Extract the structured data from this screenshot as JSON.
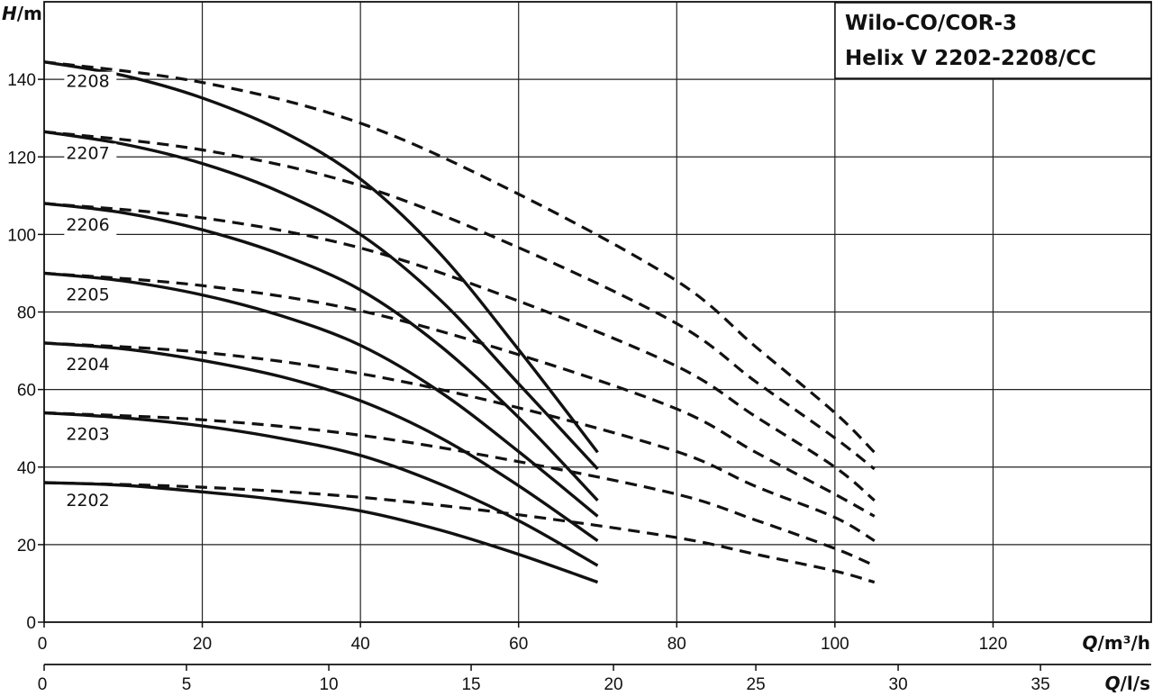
{
  "chart_data": {
    "type": "line",
    "title": [
      "Wilo-CO/COR-3",
      "Helix V 2202-2208/CC"
    ],
    "ylabel": "H/m",
    "ylabel_italic": "H",
    "ylabel_unit": "/m",
    "xlabel": "Q/m³/h",
    "xlabel_italic": "Q",
    "xlabel_unit": "/m³/h",
    "x2label": "Q/l/s",
    "x2label_italic": "Q",
    "x2label_unit": "/l/s",
    "xlim": [
      0,
      140
    ],
    "ylim": [
      0,
      160
    ],
    "xticks": [
      0,
      20,
      40,
      60,
      80,
      100,
      120
    ],
    "yticks": [
      0,
      20,
      40,
      60,
      80,
      100,
      120,
      140
    ],
    "x2ticks": [
      0,
      5,
      10,
      15,
      20,
      25,
      30,
      35
    ],
    "series": [
      {
        "name": "2202",
        "label_at": [
          3,
          30
        ],
        "solid": {
          "x": [
            0,
            10,
            20,
            30,
            40,
            50,
            60,
            70
          ],
          "y": [
            36,
            35.3,
            33.6,
            31.5,
            28.7,
            23.8,
            17.5,
            10.3
          ]
        },
        "dashed": {
          "x": [
            0,
            20,
            40,
            60,
            80,
            90,
            100,
            105
          ],
          "y": [
            36,
            34.8,
            32.2,
            27.7,
            21.8,
            17.5,
            13.2,
            10.3
          ]
        }
      },
      {
        "name": "2203",
        "label_at": [
          3,
          47
        ],
        "solid": {
          "x": [
            0,
            10,
            20,
            30,
            40,
            50,
            60,
            70
          ],
          "y": [
            54,
            52.7,
            50.6,
            47.4,
            43,
            35.7,
            26.2,
            14.6
          ]
        },
        "dashed": {
          "x": [
            0,
            20,
            40,
            60,
            80,
            90,
            100,
            105
          ],
          "y": [
            54,
            52.2,
            48.2,
            41.4,
            33,
            26.3,
            19,
            14.6
          ]
        }
      },
      {
        "name": "2204",
        "label_at": [
          3,
          65
        ],
        "solid": {
          "x": [
            0,
            10,
            20,
            30,
            40,
            50,
            60,
            70
          ],
          "y": [
            72,
            70.5,
            67.5,
            63.3,
            57.1,
            47.7,
            35.2,
            21
          ]
        },
        "dashed": {
          "x": [
            0,
            20,
            40,
            60,
            80,
            90,
            100,
            105
          ],
          "y": [
            72,
            69.6,
            64.1,
            55.3,
            44,
            35,
            27,
            21
          ]
        }
      },
      {
        "name": "2205",
        "label_at": [
          3,
          83
        ],
        "solid": {
          "x": [
            0,
            10,
            20,
            30,
            40,
            50,
            60,
            70
          ],
          "y": [
            90,
            88,
            84.4,
            79,
            71.4,
            59.5,
            44,
            27.3
          ]
        },
        "dashed": {
          "x": [
            0,
            20,
            40,
            60,
            80,
            90,
            100,
            105
          ],
          "y": [
            90,
            86.8,
            80.3,
            69,
            55,
            43.8,
            33,
            27.3
          ]
        }
      },
      {
        "name": "2206",
        "label_at": [
          3,
          101
        ],
        "solid": {
          "x": [
            0,
            10,
            20,
            30,
            40,
            50,
            60,
            70
          ],
          "y": [
            108,
            105.6,
            101.2,
            94.8,
            85.7,
            71.4,
            52.8,
            31.4
          ]
        },
        "dashed": {
          "x": [
            0,
            20,
            40,
            60,
            80,
            90,
            100,
            105
          ],
          "y": [
            108,
            104.3,
            96.5,
            82.8,
            66,
            53,
            40,
            31.4
          ]
        }
      },
      {
        "name": "2207",
        "label_at": [
          3,
          119.5
        ],
        "solid": {
          "x": [
            0,
            10,
            20,
            30,
            40,
            50,
            60,
            70
          ],
          "y": [
            126.5,
            123.3,
            118.3,
            110.8,
            100,
            83.3,
            61.5,
            39.5
          ]
        },
        "dashed": {
          "x": [
            0,
            20,
            40,
            60,
            80,
            90,
            100,
            105
          ],
          "y": [
            126.5,
            121.8,
            112.6,
            96.6,
            77,
            62,
            47.5,
            39.5
          ]
        }
      },
      {
        "name": "2208",
        "label_at": [
          3,
          138
        ]
      },
      {
        "name": "2208",
        "label_at": [
          3,
          138
        ],
        "solid": {
          "x": [
            0,
            10,
            20,
            30,
            40,
            50,
            60,
            70
          ],
          "y": [
            144.5,
            141,
            135.2,
            126.7,
            114.3,
            95.2,
            70.3,
            43.8
          ]
        },
        "dashed": {
          "x": [
            0,
            20,
            40,
            60,
            80,
            90,
            100,
            105
          ],
          "y": [
            144.5,
            139.2,
            128.7,
            110.4,
            88,
            71,
            54,
            43.8
          ]
        }
      }
    ]
  }
}
